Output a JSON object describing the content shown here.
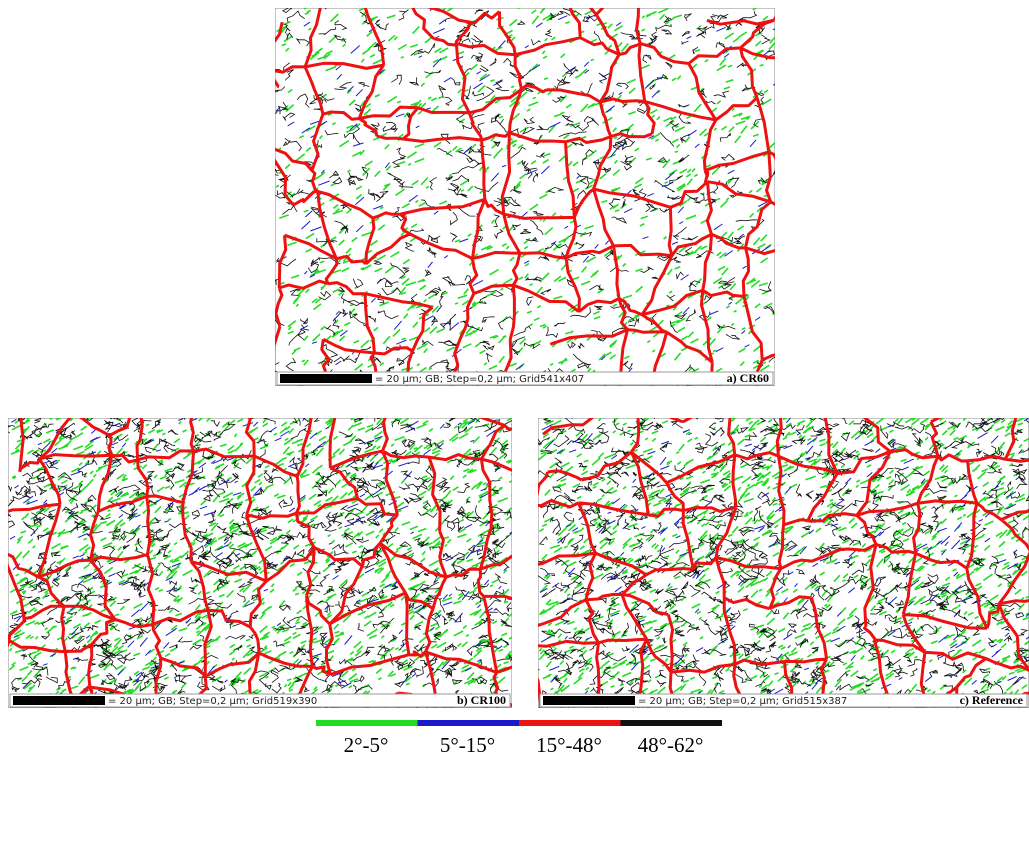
{
  "panels": [
    {
      "scale_text": "= 20 µm; GB; Step=0,2 µm; Grid541x407",
      "label": "a) CR60"
    },
    {
      "scale_text": "= 20 µm; GB; Step=0,2 µm; Grid519x390",
      "label": "b) CR100"
    },
    {
      "scale_text": "= 20 µm; GB; Step=0,2 µm; Grid515x387",
      "label": "c) Reference"
    }
  ],
  "legend": [
    {
      "label": "2°-5°",
      "color": "#22dd22"
    },
    {
      "label": "5°-15°",
      "color": "#1a1acc"
    },
    {
      "label": "15°-48°",
      "color": "#ee1111"
    },
    {
      "label": "48°-62°",
      "color": "#111111"
    }
  ]
}
